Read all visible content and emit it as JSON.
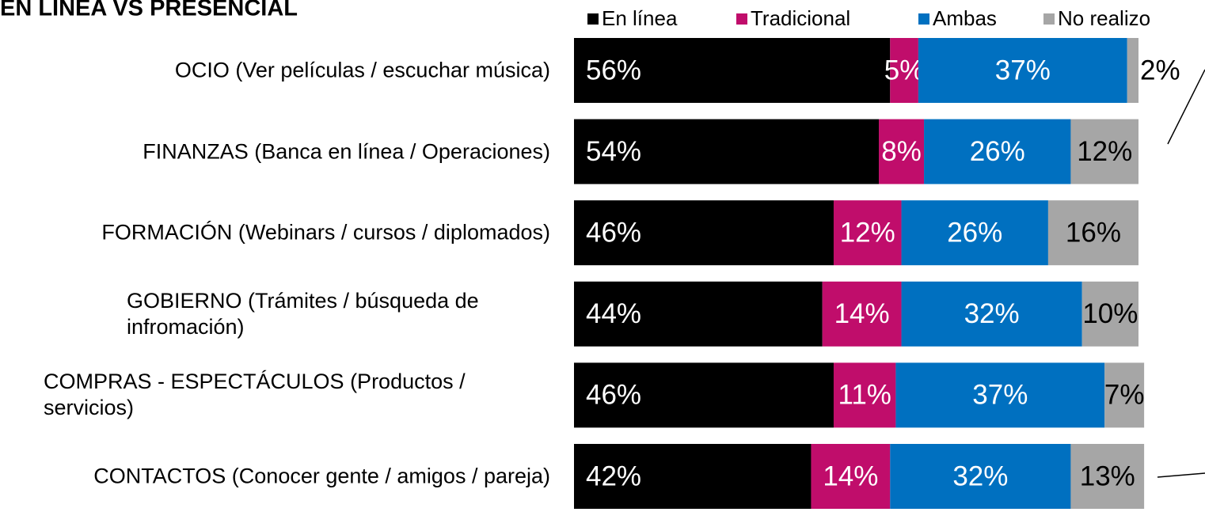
{
  "chart_data": {
    "type": "stacked-bar-horizontal",
    "title": "EN LÍNEA VS PRESENCIAL",
    "categories": [
      "OCIO (Ver películas / escuchar música)",
      "FINANZAS (Banca en línea / Operaciones)",
      "FORMACIÓN (Webinars / cursos / diplomados)",
      "GOBIERNO (Trámites / búsqueda de infromación)",
      "COMPRAS - ESPECTÁCULOS (Productos / servicios)",
      "CONTACTOS (Conocer gente / amigos / pareja)"
    ],
    "xlim": [
      0,
      100
    ],
    "series": [
      {
        "name": "En línea",
        "color": "#000000",
        "values": [
          56,
          54,
          46,
          44,
          46,
          42
        ],
        "value_labels": [
          "56%",
          "54%",
          "46%",
          "44%",
          "46%",
          "42%"
        ]
      },
      {
        "name": "Tradicional",
        "color": "#c00d6b",
        "values": [
          5,
          8,
          12,
          14,
          11,
          14
        ],
        "value_labels": [
          "5%",
          "8%",
          "12%",
          "14%",
          "11%",
          "14%"
        ]
      },
      {
        "name": "Ambas",
        "color": "#0070c0",
        "values": [
          37,
          26,
          26,
          32,
          37,
          32
        ],
        "value_labels": [
          "37%",
          "26%",
          "26%",
          "32%",
          "37%",
          "32%"
        ]
      },
      {
        "name": "No realizo",
        "color": "#a6a6a6",
        "values": [
          2,
          12,
          16,
          10,
          7,
          13
        ],
        "value_labels": [
          "2%",
          "12%",
          "16%",
          "10%",
          "7%",
          "13%"
        ]
      }
    ],
    "legend": "top"
  }
}
